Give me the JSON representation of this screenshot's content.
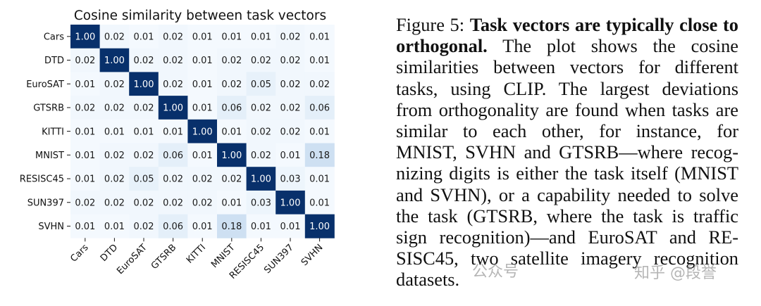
{
  "chart_data": {
    "type": "heatmap",
    "title": "Cosine similarity between task vectors",
    "row_labels": [
      "Cars",
      "DTD",
      "EuroSAT",
      "GTSRB",
      "KITTI",
      "MNIST",
      "RESISC45",
      "SUN397",
      "SVHN"
    ],
    "col_labels": [
      "Cars",
      "DTD",
      "EuroSAT",
      "GTSRB",
      "KITTI",
      "MNIST",
      "RESISC45",
      "SUN397",
      "SVHN"
    ],
    "values": [
      [
        1.0,
        0.02,
        0.01,
        0.02,
        0.01,
        0.01,
        0.01,
        0.02,
        0.01
      ],
      [
        0.02,
        1.0,
        0.02,
        0.02,
        0.01,
        0.02,
        0.02,
        0.02,
        0.01
      ],
      [
        0.01,
        0.02,
        1.0,
        0.02,
        0.01,
        0.02,
        0.05,
        0.02,
        0.02
      ],
      [
        0.02,
        0.02,
        0.02,
        1.0,
        0.01,
        0.06,
        0.02,
        0.02,
        0.06
      ],
      [
        0.01,
        0.01,
        0.01,
        0.01,
        1.0,
        0.01,
        0.02,
        0.02,
        0.01
      ],
      [
        0.01,
        0.02,
        0.02,
        0.06,
        0.01,
        1.0,
        0.02,
        0.01,
        0.18
      ],
      [
        0.01,
        0.02,
        0.05,
        0.02,
        0.02,
        0.02,
        1.0,
        0.03,
        0.01
      ],
      [
        0.02,
        0.02,
        0.02,
        0.02,
        0.02,
        0.01,
        0.03,
        1.0,
        0.01
      ],
      [
        0.01,
        0.01,
        0.02,
        0.06,
        0.01,
        0.18,
        0.01,
        0.01,
        1.0
      ]
    ],
    "colormap": "Blues",
    "value_format": "2 decimals"
  },
  "caption": {
    "label": "Figure 5:",
    "title": "Task vectors are typically close to orthogonal.",
    "body": "The plot shows the cosine similarities between vectors for different tasks, using CLIP. The largest deviations from orthogonality are found when tasks are similar to each other, for instance, for MNIST, SVHN and GTSRB—where recog­nizing digits is either the task itself (MNIST and SVHN), or a capability needed to solve the task (GTSRB, where the task is traffic sign recognition)—and EuroSAT and RE­SISC45, two satellite imagery recognition datasets."
  },
  "watermarks": [
    "公众号",
    "知乎 @段誉"
  ]
}
